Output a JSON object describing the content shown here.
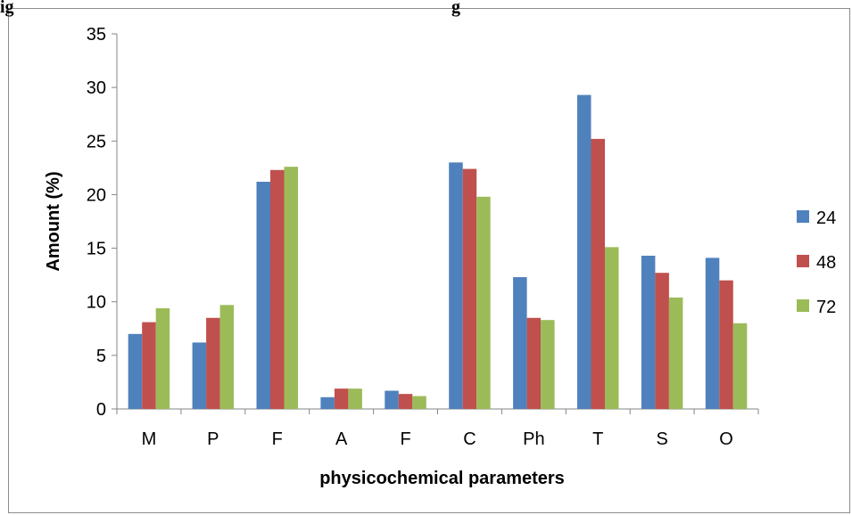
{
  "caption_fragments": {
    "left": "ig",
    "right": "g"
  },
  "chart_data": {
    "type": "bar",
    "categories": [
      "M",
      "P",
      "F",
      "A",
      "F",
      "C",
      "Ph",
      "T",
      "S",
      "O"
    ],
    "series": [
      {
        "name": "24",
        "color": "#4f81bd",
        "values": [
          7.0,
          6.2,
          21.2,
          1.1,
          1.7,
          23.0,
          12.3,
          29.3,
          14.3,
          14.1
        ]
      },
      {
        "name": "48",
        "color": "#c0504d",
        "values": [
          8.1,
          8.5,
          22.3,
          1.9,
          1.4,
          22.4,
          8.5,
          25.2,
          12.7,
          12.0
        ]
      },
      {
        "name": "72",
        "color": "#9bbb59",
        "values": [
          9.4,
          9.7,
          22.6,
          1.9,
          1.2,
          19.8,
          8.3,
          15.1,
          10.4,
          8.0
        ]
      }
    ],
    "xlabel": "physicochemical parameters",
    "ylabel": "Amount (%)",
    "ylim": [
      0,
      35
    ],
    "yticks": [
      0,
      5,
      10,
      15,
      20,
      25,
      30,
      35
    ],
    "grid": false,
    "legend_position": "right"
  }
}
